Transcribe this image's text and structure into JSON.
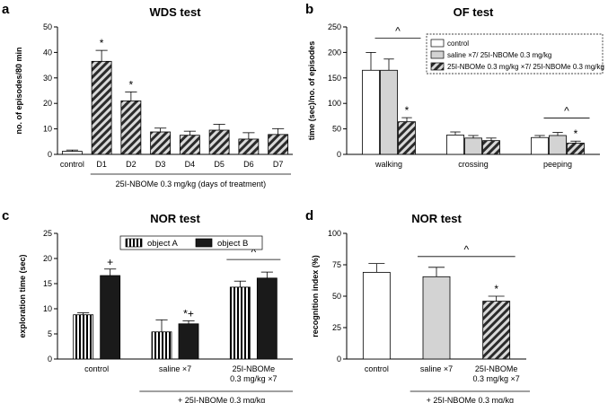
{
  "colors": {
    "white": "#ffffff",
    "grey": "#d3d3d3",
    "black": "#1a1a1a",
    "control_bar": "#f2f2f2",
    "hatch": "#2b2b2b",
    "axis": "#000000"
  },
  "chart_data": [
    {
      "panel": "a",
      "type": "bar",
      "title": "WDS test",
      "ylabel": "no. of episodes/80 min",
      "ylim": [
        0,
        50
      ],
      "yticks": [
        0,
        10,
        20,
        30,
        40,
        50
      ],
      "categories": [
        "control",
        "D1",
        "D2",
        "D3",
        "D4",
        "D5",
        "D6",
        "D7"
      ],
      "values": [
        1.2,
        36.5,
        21,
        8.8,
        7.5,
        9.5,
        6,
        7.8
      ],
      "errors": [
        0.5,
        4.3,
        3.5,
        1.5,
        1.6,
        2.3,
        2.5,
        2.3
      ],
      "fills": [
        "control",
        "hatch",
        "hatch",
        "hatch",
        "hatch",
        "hatch",
        "hatch",
        "hatch"
      ],
      "annotations": [
        "",
        "*",
        "*",
        "",
        "",
        "",
        "",
        ""
      ],
      "xgroup_label": "25I-NBOMe 0.3 mg/kg (days of treatment)"
    },
    {
      "panel": "b",
      "type": "bar",
      "title": "OF test",
      "ylabel": "time (sec)/no. of episodes",
      "ylim": [
        0,
        250
      ],
      "yticks": [
        0,
        50,
        100,
        150,
        200,
        250
      ],
      "categories": [
        "walking",
        "crossing",
        "peeping"
      ],
      "series": [
        {
          "name": "control",
          "fill": "white",
          "values": [
            165,
            38,
            33
          ],
          "errors": [
            35,
            6,
            4
          ]
        },
        {
          "name": "saline ×7/ 25I-NBOMe 0.3 mg/kg",
          "fill": "grey",
          "values": [
            165,
            32,
            37
          ],
          "errors": [
            22,
            5,
            6
          ]
        },
        {
          "name": "25I-NBOMe 0.3 mg/kg ×7/ 25I-NBOMe 0.3 mg/kg",
          "fill": "hatch",
          "values": [
            64,
            27,
            22
          ],
          "errors": [
            8,
            5,
            4
          ]
        }
      ],
      "annotations": [
        {
          "category": 0,
          "series": 2,
          "text": "*"
        },
        {
          "category": 2,
          "series": 2,
          "text": "*"
        }
      ],
      "brackets": [
        {
          "category": 0,
          "from_series": 1,
          "to_series": 2,
          "text": "^"
        },
        {
          "category": 2,
          "from_series": 1,
          "to_series": 2,
          "text": "^"
        }
      ],
      "legend": "top-right"
    },
    {
      "panel": "c",
      "type": "bar",
      "title": "NOR test",
      "ylabel": "exploration time (sec)",
      "ylim": [
        0,
        25
      ],
      "yticks": [
        0,
        5,
        10,
        15,
        20,
        25
      ],
      "categories": [
        "control",
        "saline ×7",
        "25I-NBOMe\n0.3 mg/kg ×7"
      ],
      "series": [
        {
          "name": "object A",
          "fill": "vstripe",
          "values": [
            8.8,
            5.4,
            14.3
          ],
          "errors": [
            0.4,
            2.4,
            1.2
          ]
        },
        {
          "name": "object B",
          "fill": "black",
          "values": [
            16.6,
            7.0,
            16.1
          ],
          "errors": [
            1.3,
            0.6,
            1.2
          ]
        }
      ],
      "annotations": [
        {
          "category": 0,
          "series": 1,
          "text": "+"
        },
        {
          "category": 1,
          "series": 1,
          "text": "*+"
        }
      ],
      "brackets": [
        {
          "category": 2,
          "from_series": 0,
          "to_series": 1,
          "text": "^"
        }
      ],
      "footer": "+ 25I-NBOMe 0.3 mg/kg",
      "legend": "top"
    },
    {
      "panel": "d",
      "type": "bar",
      "title": "NOR test",
      "ylabel": "recognition index (%)",
      "ylim": [
        0,
        100
      ],
      "yticks": [
        0,
        25,
        50,
        75,
        100
      ],
      "categories": [
        "control",
        "saline ×7",
        "25I-NBOMe\n0.3 mg/kg ×7"
      ],
      "values": [
        69,
        65.5,
        46
      ],
      "errors": [
        7,
        7.5,
        4
      ],
      "fills": [
        "white",
        "grey",
        "hatch"
      ],
      "annotations": [
        "",
        "",
        "*"
      ],
      "bracket": {
        "text": "^"
      },
      "footer": "+ 25I-NBOMe 0.3 mg/kg"
    }
  ]
}
